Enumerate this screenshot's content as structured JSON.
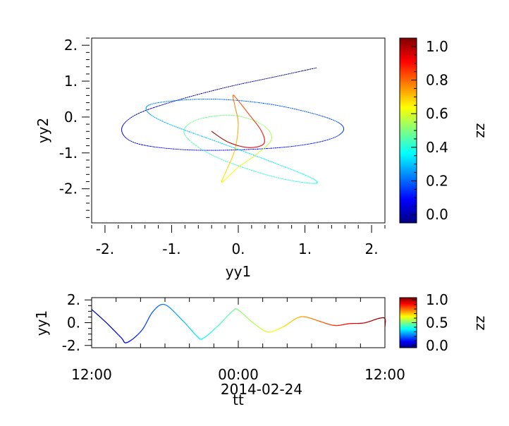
{
  "chart_data": [
    {
      "type": "line",
      "title": "",
      "xlabel": "yy1",
      "ylabel": "yy2",
      "xlim": [
        -2.2,
        2.2
      ],
      "ylim": [
        -2.95,
        2.2
      ],
      "x_ticks": [
        -2,
        -1,
        0,
        1,
        2
      ],
      "x_tick_labels": [
        "-2.",
        "-1.",
        "0.",
        "1.",
        "2."
      ],
      "y_ticks": [
        2,
        1,
        0,
        -1,
        -2
      ],
      "y_tick_labels": [
        "2.",
        "1.",
        "0.",
        "-1.",
        "-2."
      ],
      "series": [
        {
          "color_by": "zz",
          "points": [
            {
              "x": 1.17,
              "y": 1.37,
              "z": 0.0
            },
            {
              "x": 0.55,
              "y": 1.12,
              "z": 0.015
            },
            {
              "x": -0.2,
              "y": 0.82,
              "z": 0.03
            },
            {
              "x": -1.0,
              "y": 0.42,
              "z": 0.045
            },
            {
              "x": -1.55,
              "y": 0.05,
              "z": 0.06
            },
            {
              "x": -1.75,
              "y": -0.35,
              "z": 0.075
            },
            {
              "x": -1.55,
              "y": -0.72,
              "z": 0.09
            },
            {
              "x": -0.9,
              "y": -0.9,
              "z": 0.105
            },
            {
              "x": -0.1,
              "y": -0.92,
              "z": 0.12
            },
            {
              "x": 0.8,
              "y": -0.82,
              "z": 0.14
            },
            {
              "x": 1.4,
              "y": -0.6,
              "z": 0.16
            },
            {
              "x": 1.58,
              "y": -0.3,
              "z": 0.18
            },
            {
              "x": 1.3,
              "y": 0.0,
              "z": 0.2
            },
            {
              "x": 0.5,
              "y": 0.35,
              "z": 0.22
            },
            {
              "x": -0.4,
              "y": 0.5,
              "z": 0.24
            },
            {
              "x": -1.2,
              "y": 0.4,
              "z": 0.26
            },
            {
              "x": -1.38,
              "y": 0.2,
              "z": 0.28
            },
            {
              "x": -1.1,
              "y": -0.15,
              "z": 0.3
            },
            {
              "x": -0.3,
              "y": -0.7,
              "z": 0.33
            },
            {
              "x": 0.5,
              "y": -1.25,
              "z": 0.36
            },
            {
              "x": 1.1,
              "y": -1.7,
              "z": 0.39
            },
            {
              "x": 1.12,
              "y": -1.85,
              "z": 0.4
            },
            {
              "x": 0.5,
              "y": -1.65,
              "z": 0.42
            },
            {
              "x": -0.35,
              "y": -1.1,
              "z": 0.44
            },
            {
              "x": -0.8,
              "y": -0.5,
              "z": 0.46
            },
            {
              "x": -0.65,
              "y": -0.1,
              "z": 0.48
            },
            {
              "x": -0.1,
              "y": 0.05,
              "z": 0.5
            },
            {
              "x": 0.35,
              "y": -0.2,
              "z": 0.52
            },
            {
              "x": 0.5,
              "y": -0.6,
              "z": 0.55
            },
            {
              "x": 0.3,
              "y": -1.0,
              "z": 0.58
            },
            {
              "x": 0.0,
              "y": -1.4,
              "z": 0.61
            },
            {
              "x": -0.2,
              "y": -1.75,
              "z": 0.63
            },
            {
              "x": -0.25,
              "y": -1.8,
              "z": 0.64
            },
            {
              "x": -0.18,
              "y": -1.5,
              "z": 0.66
            },
            {
              "x": -0.05,
              "y": -0.9,
              "z": 0.69
            },
            {
              "x": 0.0,
              "y": -0.2,
              "z": 0.72
            },
            {
              "x": -0.05,
              "y": 0.3,
              "z": 0.75
            },
            {
              "x": -0.08,
              "y": 0.6,
              "z": 0.77
            },
            {
              "x": -0.02,
              "y": 0.5,
              "z": 0.79
            },
            {
              "x": 0.15,
              "y": 0.1,
              "z": 0.82
            },
            {
              "x": 0.35,
              "y": -0.4,
              "z": 0.86
            },
            {
              "x": 0.38,
              "y": -0.75,
              "z": 0.89
            },
            {
              "x": 0.15,
              "y": -0.85,
              "z": 0.92
            },
            {
              "x": -0.15,
              "y": -0.7,
              "z": 0.96
            },
            {
              "x": -0.4,
              "y": -0.4,
              "z": 1.0
            }
          ]
        }
      ],
      "colorbar": {
        "label": "zz",
        "range": [
          -0.05,
          1.05
        ],
        "ticks": [
          1.0,
          0.8,
          0.6,
          0.4,
          0.2,
          0.0
        ],
        "tick_labels": [
          "1.0",
          "0.8",
          "0.6",
          "0.4",
          "0.2",
          "0.0"
        ]
      },
      "grid": false,
      "legend": "none"
    },
    {
      "type": "line",
      "title": "",
      "xlabel": "tt",
      "xlabel_offset": "2014-02-24",
      "ylabel": "yy1",
      "xlim": [
        "2014-02-23T12:00",
        "2014-02-24T12:00"
      ],
      "ylim": [
        -2.2,
        2.2
      ],
      "x_ticks": [
        "2014-02-23T12:00",
        "2014-02-24T00:00",
        "2014-02-24T12:00"
      ],
      "x_tick_labels": [
        "12:00",
        "00:00",
        "12:00"
      ],
      "y_ticks": [
        2,
        0,
        -2
      ],
      "y_tick_labels": [
        "2.",
        "0.",
        "-2."
      ],
      "series": [
        {
          "color_by": "zz",
          "points": [
            {
              "x": "2014-02-23T12:00",
              "y": 1.17,
              "z": 0.0
            },
            {
              "x": "2014-02-23T13:12",
              "y": 0.0,
              "z": 0.05
            },
            {
              "x": "2014-02-23T14:24",
              "y": -1.3,
              "z": 0.1
            },
            {
              "x": "2014-02-23T14:53",
              "y": -1.75,
              "z": 0.12
            },
            {
              "x": "2014-02-23T16:05",
              "y": -0.7,
              "z": 0.17
            },
            {
              "x": "2014-02-23T17:02",
              "y": 1.0,
              "z": 0.21
            },
            {
              "x": "2014-02-23T18:00",
              "y": 1.58,
              "z": 0.25
            },
            {
              "x": "2014-02-23T19:26",
              "y": 0.2,
              "z": 0.31
            },
            {
              "x": "2014-02-23T20:38",
              "y": -1.2,
              "z": 0.36
            },
            {
              "x": "2014-02-23T21:07",
              "y": -1.38,
              "z": 0.38
            },
            {
              "x": "2014-02-23T22:19",
              "y": -0.3,
              "z": 0.43
            },
            {
              "x": "2014-02-23T23:31",
              "y": 1.0,
              "z": 0.48
            },
            {
              "x": "2014-02-23T23:59",
              "y": 1.12,
              "z": 0.5
            },
            {
              "x": "2014-02-24T01:12",
              "y": 0.0,
              "z": 0.55
            },
            {
              "x": "2014-02-24T02:24",
              "y": -0.8,
              "z": 0.6
            },
            {
              "x": "2014-02-24T03:36",
              "y": -0.4,
              "z": 0.65
            },
            {
              "x": "2014-02-24T04:48",
              "y": 0.4,
              "z": 0.7
            },
            {
              "x": "2014-02-24T05:31",
              "y": 0.5,
              "z": 0.73
            },
            {
              "x": "2014-02-24T06:43",
              "y": 0.1,
              "z": 0.78
            },
            {
              "x": "2014-02-24T07:55",
              "y": -0.25,
              "z": 0.83
            },
            {
              "x": "2014-02-24T09:07",
              "y": -0.08,
              "z": 0.88
            },
            {
              "x": "2014-02-24T10:19",
              "y": -0.02,
              "z": 0.93
            },
            {
              "x": "2014-02-24T11:31",
              "y": 0.38,
              "z": 0.98
            },
            {
              "x": "2014-02-24T12:00",
              "y": 0.35,
              "z": 1.0
            },
            {
              "x": "2014-02-24T12:00",
              "y": -0.4,
              "z": 1.0
            }
          ]
        }
      ],
      "colorbar": {
        "label": "zz",
        "range": [
          -0.05,
          1.05
        ],
        "ticks": [
          1.0,
          0.5,
          0.0
        ],
        "tick_labels": [
          "1.0",
          "0.5",
          "0.0"
        ]
      },
      "grid": false,
      "legend": "none"
    }
  ]
}
